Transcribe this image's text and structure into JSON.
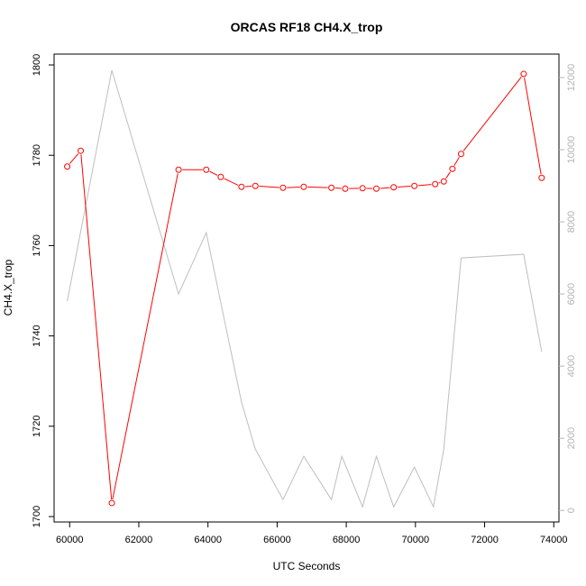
{
  "chart_data": {
    "type": "line",
    "title": "ORCAS RF18 CH4.X_trop",
    "xlabel": "UTC Seconds",
    "ylabel": "CH4.X_trop",
    "xlim": [
      59550,
      74150
    ],
    "ylim": [
      1698.8,
      1802.4
    ],
    "y2lim": [
      -320,
      12650
    ],
    "xticks": [
      60000,
      62000,
      64000,
      66000,
      68000,
      70000,
      72000,
      74000
    ],
    "yticks": [
      1700,
      1720,
      1740,
      1760,
      1780,
      1800
    ],
    "y2ticks": [
      0,
      2000,
      4000,
      6000,
      8000,
      10000,
      12000
    ],
    "series": [
      {
        "axis": "left",
        "color": "#ff0000",
        "markers": true,
        "x": [
          59930,
          60320,
          61220,
          63150,
          63950,
          64370,
          64970,
          65370,
          66170,
          66770,
          67570,
          67970,
          68470,
          68870,
          69370,
          69970,
          70570,
          70820,
          71070,
          71320,
          73130,
          73650
        ],
        "y": [
          1777.5,
          1781,
          1703,
          1776.8,
          1776.8,
          1775.2,
          1773,
          1773.2,
          1772.8,
          1773,
          1772.8,
          1772.6,
          1772.7,
          1772.6,
          1772.9,
          1773.2,
          1773.6,
          1774.2,
          1777,
          1780.3,
          1798,
          1775
        ]
      },
      {
        "axis": "right",
        "color": "#bebebe",
        "markers": false,
        "x": [
          59930,
          61220,
          63150,
          63950,
          64970,
          65370,
          66170,
          66770,
          67570,
          67870,
          68470,
          68870,
          69370,
          69970,
          70520,
          70820,
          71320,
          73130,
          73650
        ],
        "y": [
          5800,
          12200,
          6000,
          7700,
          3000,
          1700,
          300,
          1500,
          300,
          1500,
          100,
          1500,
          100,
          1200,
          100,
          1700,
          7000,
          7100,
          4400
        ]
      }
    ]
  }
}
